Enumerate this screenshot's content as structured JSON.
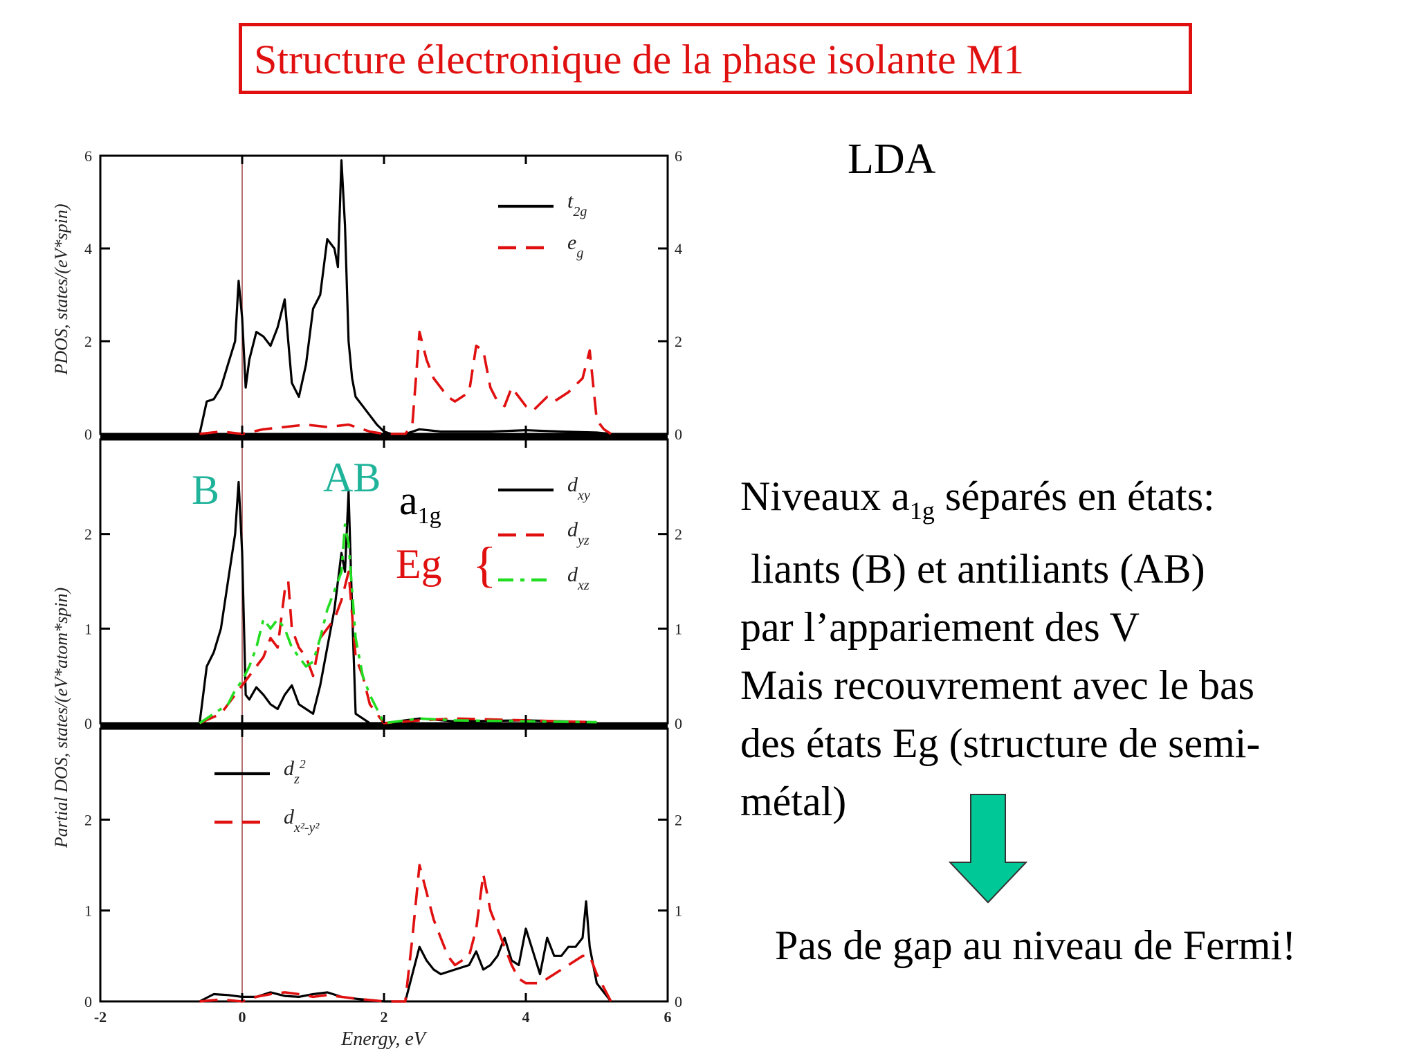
{
  "title": "Structure électronique de la phase isolante M1",
  "method_label": "LDA",
  "annotations": {
    "bonding": "B",
    "antibonding": "AB",
    "a1g_main": "a",
    "a1g_sub": "1g",
    "eg": "Eg",
    "brace": "{"
  },
  "description": {
    "line1_pre": "Niveaux a",
    "line1_sub": "1g",
    "line1_post": " séparés en états:",
    "line2": " liants (B) et antiliants (AB)",
    "line3": "par l’appariement des V",
    "line4": "Mais recouvrement avec le bas",
    "line5": "des états Eg (structure de semi-",
    "line6": "métal)"
  },
  "conclusion": "Pas de gap au niveau de Fermi!",
  "colors": {
    "title": "#e01010",
    "teal": "#1fb39a",
    "arrow": "#00c896",
    "red_series": "#e01010",
    "green_series": "#22dd22"
  },
  "chart_data": [
    {
      "type": "line",
      "panel": "top",
      "ylabel": "PDOS, states/(eV*spin)",
      "xlim": [
        -2,
        6
      ],
      "ylim": [
        0,
        6
      ],
      "yticks": [
        "0",
        "2",
        "4",
        "6"
      ],
      "legend_position": "top-right",
      "fermi_level_x": 0,
      "series": [
        {
          "name": "t2g",
          "name_main": "t",
          "name_sub": "2g",
          "color": "#000000",
          "dash": "solid",
          "x": [
            -0.6,
            -0.5,
            -0.4,
            -0.3,
            -0.2,
            -0.1,
            -0.05,
            0.0,
            0.05,
            0.1,
            0.2,
            0.3,
            0.4,
            0.5,
            0.6,
            0.65,
            0.7,
            0.8,
            0.9,
            1.0,
            1.1,
            1.2,
            1.3,
            1.35,
            1.4,
            1.45,
            1.5,
            1.55,
            1.6,
            1.7,
            1.8,
            1.9,
            2.0,
            2.1,
            2.3,
            2.5,
            2.8,
            3.0,
            3.5,
            4.0,
            4.5,
            5.0,
            5.2
          ],
          "y": [
            0,
            0.7,
            0.75,
            1.0,
            1.5,
            2.0,
            3.3,
            2.5,
            1.0,
            1.6,
            2.2,
            2.1,
            1.9,
            2.3,
            2.9,
            2.0,
            1.1,
            0.8,
            1.5,
            2.7,
            3.0,
            4.2,
            4.0,
            3.6,
            5.9,
            4.5,
            2.0,
            1.2,
            0.8,
            0.6,
            0.4,
            0.2,
            0.05,
            0,
            0,
            0.1,
            0.05,
            0.05,
            0.05,
            0.08,
            0.05,
            0.03,
            0
          ]
        },
        {
          "name": "eg",
          "name_main": "e",
          "name_sub": "g",
          "color": "#e01010",
          "dash": "dashed",
          "x": [
            -0.6,
            -0.3,
            0.0,
            0.3,
            0.6,
            0.9,
            1.2,
            1.5,
            1.8,
            2.0,
            2.2,
            2.3,
            2.4,
            2.5,
            2.6,
            2.7,
            2.8,
            2.9,
            3.0,
            3.2,
            3.3,
            3.4,
            3.5,
            3.6,
            3.7,
            3.8,
            3.9,
            4.0,
            4.1,
            4.3,
            4.4,
            4.6,
            4.8,
            4.9,
            5.0,
            5.1,
            5.2
          ],
          "y": [
            0,
            0.05,
            0,
            0.1,
            0.15,
            0.2,
            0.15,
            0.2,
            0.05,
            0,
            0,
            0,
            0.2,
            2.2,
            1.6,
            1.2,
            1.0,
            0.8,
            0.7,
            0.9,
            1.9,
            1.8,
            1.0,
            0.7,
            0.6,
            1.0,
            0.8,
            0.6,
            0.5,
            0.8,
            0.7,
            0.9,
            1.2,
            1.8,
            0.3,
            0.1,
            0
          ]
        }
      ]
    },
    {
      "type": "line",
      "panel": "middle",
      "ylabel": "Partial DOS, states/(eV*atom*spin)",
      "xlim": [
        -2,
        6
      ],
      "ylim": [
        0,
        3
      ],
      "yticks": [
        "0",
        "1",
        "2"
      ],
      "legend_position": "top-right",
      "fermi_level_x": 0,
      "series": [
        {
          "name": "dxy",
          "name_main": "d",
          "name_sub": "xy",
          "color": "#000000",
          "dash": "solid",
          "x": [
            -0.6,
            -0.5,
            -0.4,
            -0.3,
            -0.2,
            -0.1,
            -0.05,
            0.0,
            0.05,
            0.1,
            0.2,
            0.3,
            0.4,
            0.5,
            0.6,
            0.7,
            0.8,
            0.9,
            1.0,
            1.1,
            1.2,
            1.3,
            1.4,
            1.45,
            1.5,
            1.55,
            1.6,
            1.8,
            2.0,
            2.5,
            3.0,
            4.0,
            5.0
          ],
          "y": [
            0,
            0.6,
            0.75,
            1.0,
            1.5,
            2.0,
            2.55,
            1.8,
            0.3,
            0.25,
            0.38,
            0.3,
            0.2,
            0.15,
            0.3,
            0.4,
            0.2,
            0.15,
            0.1,
            0.4,
            0.8,
            1.2,
            1.8,
            1.6,
            2.45,
            1.2,
            0.1,
            0,
            0,
            0.05,
            0.02,
            0.03,
            0.01
          ]
        },
        {
          "name": "dyz",
          "name_main": "d",
          "name_sub": "yz",
          "color": "#e01010",
          "dash": "dashed",
          "x": [
            -0.6,
            -0.3,
            -0.1,
            0.0,
            0.1,
            0.2,
            0.3,
            0.4,
            0.5,
            0.6,
            0.65,
            0.7,
            0.8,
            0.9,
            1.0,
            1.1,
            1.2,
            1.3,
            1.4,
            1.5,
            1.6,
            1.7,
            1.8,
            2.0,
            2.5,
            3.0,
            4.0,
            5.0
          ],
          "y": [
            0,
            0.1,
            0.3,
            0.4,
            0.5,
            0.6,
            0.7,
            0.9,
            0.8,
            1.4,
            1.5,
            1.0,
            0.8,
            0.7,
            0.5,
            0.9,
            1.0,
            1.1,
            1.3,
            1.6,
            0.7,
            0.5,
            0.2,
            0,
            0.03,
            0.05,
            0.03,
            0.01
          ]
        },
        {
          "name": "dxz",
          "name_main": "d",
          "name_sub": "xz",
          "color": "#22dd22",
          "dash": "dashdot",
          "x": [
            -0.6,
            -0.4,
            -0.2,
            -0.1,
            0.0,
            0.1,
            0.2,
            0.3,
            0.4,
            0.5,
            0.6,
            0.7,
            0.8,
            0.9,
            1.0,
            1.1,
            1.2,
            1.3,
            1.4,
            1.45,
            1.5,
            1.6,
            1.7,
            1.8,
            1.9,
            2.0,
            2.5,
            3.0,
            4.0,
            5.0
          ],
          "y": [
            0,
            0.1,
            0.2,
            0.35,
            0.45,
            0.6,
            0.8,
            1.1,
            1.0,
            1.1,
            1.0,
            0.8,
            0.7,
            0.6,
            0.65,
            0.9,
            1.2,
            1.4,
            1.6,
            2.1,
            1.9,
            0.9,
            0.5,
            0.3,
            0.15,
            0,
            0.05,
            0.03,
            0.02,
            0.01
          ]
        }
      ]
    },
    {
      "type": "line",
      "panel": "bottom",
      "ylabel": "",
      "xlabel": "Energy, eV",
      "xlim": [
        -2,
        6
      ],
      "ylim": [
        0,
        3
      ],
      "xticks": [
        "-2",
        "0",
        "2",
        "4",
        "6"
      ],
      "yticks": [
        "0",
        "1",
        "2"
      ],
      "legend_position": "top-left",
      "fermi_level_x": 0,
      "series": [
        {
          "name": "dz2",
          "name_main": "d",
          "name_sub": "z",
          "name_sup": "2",
          "color": "#000000",
          "dash": "solid",
          "x": [
            -0.6,
            -0.4,
            -0.2,
            0.0,
            0.2,
            0.4,
            0.6,
            0.8,
            1.0,
            1.2,
            1.4,
            1.6,
            2.0,
            2.3,
            2.4,
            2.5,
            2.6,
            2.7,
            2.8,
            3.0,
            3.2,
            3.3,
            3.4,
            3.5,
            3.6,
            3.7,
            3.8,
            3.9,
            4.0,
            4.1,
            4.2,
            4.3,
            4.4,
            4.5,
            4.6,
            4.7,
            4.8,
            4.85,
            4.9,
            5.0,
            5.2
          ],
          "y": [
            0,
            0.08,
            0.07,
            0.05,
            0.05,
            0.1,
            0.06,
            0.05,
            0.08,
            0.1,
            0.05,
            0.03,
            0,
            0,
            0.3,
            0.6,
            0.45,
            0.35,
            0.3,
            0.35,
            0.4,
            0.55,
            0.35,
            0.4,
            0.5,
            0.7,
            0.45,
            0.4,
            0.8,
            0.55,
            0.3,
            0.7,
            0.5,
            0.5,
            0.6,
            0.6,
            0.7,
            1.1,
            0.6,
            0.2,
            0
          ]
        },
        {
          "name": "dx2-y2",
          "name_main": "d",
          "name_sub": "x²-y²",
          "color": "#e01010",
          "dash": "dashed",
          "x": [
            -0.6,
            -0.3,
            0.0,
            0.2,
            0.4,
            0.6,
            0.8,
            1.0,
            1.2,
            1.4,
            1.6,
            2.0,
            2.3,
            2.4,
            2.5,
            2.6,
            2.7,
            2.8,
            2.9,
            3.0,
            3.2,
            3.3,
            3.4,
            3.5,
            3.6,
            3.7,
            3.8,
            3.9,
            4.0,
            4.2,
            4.4,
            4.6,
            4.8,
            4.9,
            5.0,
            5.2
          ],
          "y": [
            0,
            0.02,
            0,
            0.05,
            0.08,
            0.1,
            0.08,
            0.05,
            0.07,
            0.05,
            0.03,
            0,
            0,
            0.7,
            1.5,
            1.2,
            0.9,
            0.7,
            0.5,
            0.4,
            0.5,
            0.8,
            1.4,
            1.0,
            0.8,
            0.6,
            0.4,
            0.25,
            0.2,
            0.2,
            0.3,
            0.4,
            0.5,
            0.5,
            0.3,
            0
          ]
        }
      ]
    }
  ]
}
